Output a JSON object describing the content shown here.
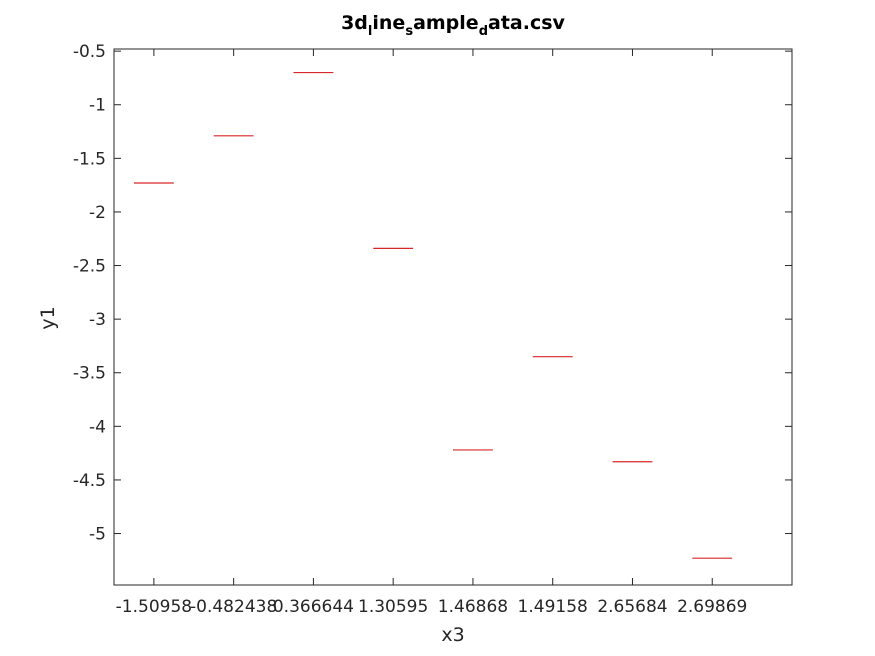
{
  "chart_data": {
    "type": "bar",
    "title": "3d_line_sample_data.csv",
    "title_parts": [
      {
        "text": "3d",
        "sub": false
      },
      {
        "text": "l",
        "sub": true
      },
      {
        "text": "ine",
        "sub": false
      },
      {
        "text": "s",
        "sub": true
      },
      {
        "text": "ample",
        "sub": false
      },
      {
        "text": "d",
        "sub": true
      },
      {
        "text": "ata.csv",
        "sub": false
      }
    ],
    "xlabel": "x3",
    "ylabel": "y1",
    "categories": [
      "-1.50958",
      "-0.482438",
      "0.366644",
      "1.30595",
      "1.46868",
      "1.49158",
      "2.65684",
      "2.69869"
    ],
    "values": [
      -1.73,
      -1.29,
      -0.7,
      -2.34,
      -4.22,
      -3.35,
      -4.33,
      -5.23
    ],
    "ylim": [
      -5.48,
      -0.48
    ],
    "yticks": [
      -0.5,
      -1,
      -1.5,
      -2,
      -2.5,
      -3,
      -3.5,
      -4,
      -4.5,
      -5
    ],
    "ytick_labels": [
      "-0.5",
      "-1",
      "-1.5",
      "-2",
      "-2.5",
      "-3",
      "-3.5",
      "-4",
      "-4.5",
      "-5"
    ],
    "grid": false,
    "series_color": "#d62728",
    "axis_color": "#262626"
  }
}
